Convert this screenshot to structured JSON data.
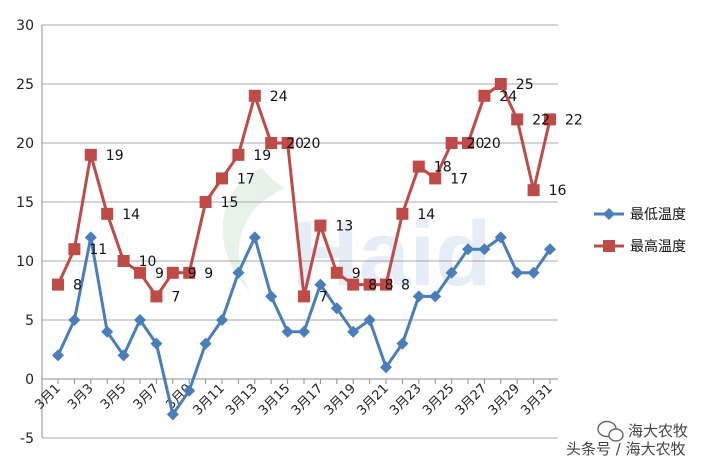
{
  "chart_data": {
    "type": "line",
    "title": "",
    "xlabel": "",
    "ylabel": "",
    "ylim": [
      -5,
      30
    ],
    "yticks": [
      -5,
      0,
      5,
      10,
      15,
      20,
      25,
      30
    ],
    "grid": true,
    "legend_position": "right",
    "categories": [
      "3月1",
      "3月2",
      "3月3",
      "3月4",
      "3月5",
      "3月6",
      "3月7",
      "3月8",
      "3月9",
      "3月10",
      "3月11",
      "3月12",
      "3月13",
      "3月14",
      "3月15",
      "3月16",
      "3月17",
      "3月18",
      "3月19",
      "3月20",
      "3月21",
      "3月22",
      "3月23",
      "3月24",
      "3月25",
      "3月26",
      "3月27",
      "3月28",
      "3月29",
      "3月30",
      "3月31"
    ],
    "x_tick_labels": [
      "3月1",
      "3月3",
      "3月5",
      "3月7",
      "3月9",
      "3月11",
      "3月13",
      "3月15",
      "3月17",
      "3月19",
      "3月21",
      "3月23",
      "3月25",
      "3月27",
      "3月29",
      "3月31"
    ],
    "series": [
      {
        "name": "最低温度",
        "color": "#4a7ebb",
        "marker": "diamond",
        "values": [
          2,
          5,
          12,
          4,
          2,
          5,
          3,
          -3,
          -1,
          3,
          5,
          9,
          12,
          7,
          4,
          4,
          8,
          6,
          4,
          5,
          1,
          3,
          7,
          7,
          9,
          11,
          11,
          12,
          9,
          9,
          11
        ]
      },
      {
        "name": "最高温度",
        "color": "#be4b48",
        "marker": "square",
        "values": [
          8,
          11,
          19,
          14,
          10,
          9,
          7,
          9,
          9,
          15,
          17,
          19,
          24,
          20,
          20,
          7,
          13,
          9,
          8,
          8,
          8,
          14,
          18,
          17,
          20,
          20,
          24,
          25,
          22,
          16,
          22
        ],
        "labels": [
          "8",
          "11",
          "19",
          "14",
          "10",
          "9",
          "7",
          "9",
          "9",
          "15",
          "17",
          "19",
          "24",
          "20",
          "20",
          "7",
          "13",
          "9",
          "8",
          "8",
          "8",
          "14",
          "18",
          "17",
          "20",
          "20",
          "24",
          "25",
          "22",
          "16",
          "22"
        ]
      }
    ]
  },
  "watermark": {
    "logo_text": "Haid",
    "brand_top": "海大农牧",
    "brand_bottom": "头条号 / 海大农牧"
  }
}
